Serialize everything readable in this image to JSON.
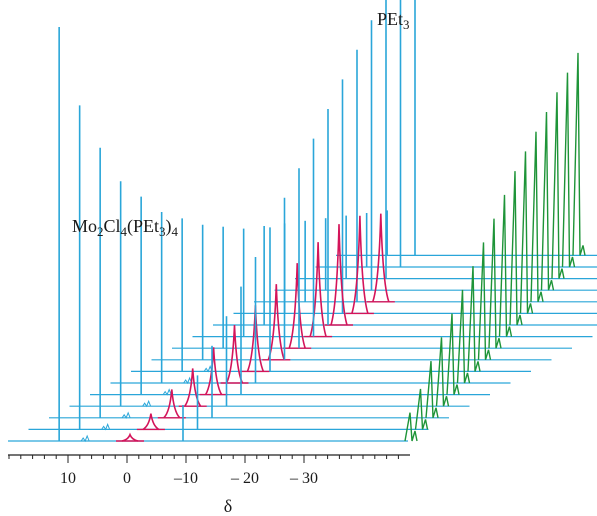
{
  "chart_data": {
    "type": "line",
    "style": "stacked-waterfall",
    "x_axis": {
      "label": "δ",
      "ticks": [
        10,
        0,
        -10,
        -20,
        -30
      ],
      "tick_labels": [
        "10",
        "0",
        "–10",
        "– 20",
        "– 30"
      ],
      "direction": "decreasing-to-right"
    },
    "trace_count": 17,
    "colors": {
      "baseline": "#2aa6d9",
      "complex_peak": "#2aa6d9",
      "free_peak": "#2aa6d9",
      "intermediate_peak": "#d4145a",
      "far_upfield_peak": "#1e9438",
      "axis": "#222222",
      "text": "#1a1a1a"
    },
    "peaks": {
      "complex_position": 11.5,
      "intermediate_positions": [
        0.0,
        -5.0,
        -9.0,
        -13.0,
        -17.0,
        -20.0,
        -23.0,
        -26.0,
        -28.0,
        -30.0,
        -32.0,
        -34.0,
        -36.0
      ],
      "intermediate_heights": [
        0.1,
        0.25,
        0.45,
        0.6,
        0.75,
        0.92,
        1.05,
        1.2,
        1.35,
        1.5,
        1.6,
        1.55,
        1.4
      ],
      "free_position": -19.5,
      "complex_heights": [
        4.6,
        3.6,
        3.0,
        2.5,
        2.2,
        1.9,
        1.7,
        1.5,
        1.35,
        1.2,
        1.1,
        1.0,
        0.9,
        0.8,
        0.7,
        0.6,
        0.5
      ],
      "free_heights": [
        0.4,
        0.6,
        0.8,
        1.0,
        1.2,
        1.4,
        1.6,
        1.8,
        2.0,
        2.2,
        2.4,
        2.6,
        2.8,
        3.0,
        3.3,
        3.6,
        4.6
      ],
      "far_upfield_heights": [
        0.35,
        0.5,
        0.7,
        0.85,
        1.0,
        1.15,
        1.3,
        1.45,
        1.6,
        1.75,
        1.9,
        2.0,
        2.1,
        2.2,
        2.3,
        2.4,
        2.5
      ]
    },
    "annotations": [
      {
        "id": "complex",
        "parts": [
          {
            "text": "Mo",
            "color": "complex"
          },
          {
            "text": "2",
            "sub": true,
            "color": "complex"
          },
          {
            "text": "Cl",
            "color": "complex"
          },
          {
            "text": "4",
            "sub": true,
            "color": "complex"
          },
          {
            "text": "(PEt",
            "color": "intermediate"
          },
          {
            "text": "3",
            "sub": true,
            "color": "intermediate"
          },
          {
            "text": ")",
            "color": "intermediate"
          },
          {
            "text": "4",
            "sub": true,
            "color": "intermediate"
          }
        ]
      },
      {
        "id": "free",
        "parts": [
          {
            "text": "PEt",
            "color": "intermediate"
          },
          {
            "text": "3",
            "sub": true,
            "color": "intermediate"
          }
        ]
      }
    ]
  }
}
